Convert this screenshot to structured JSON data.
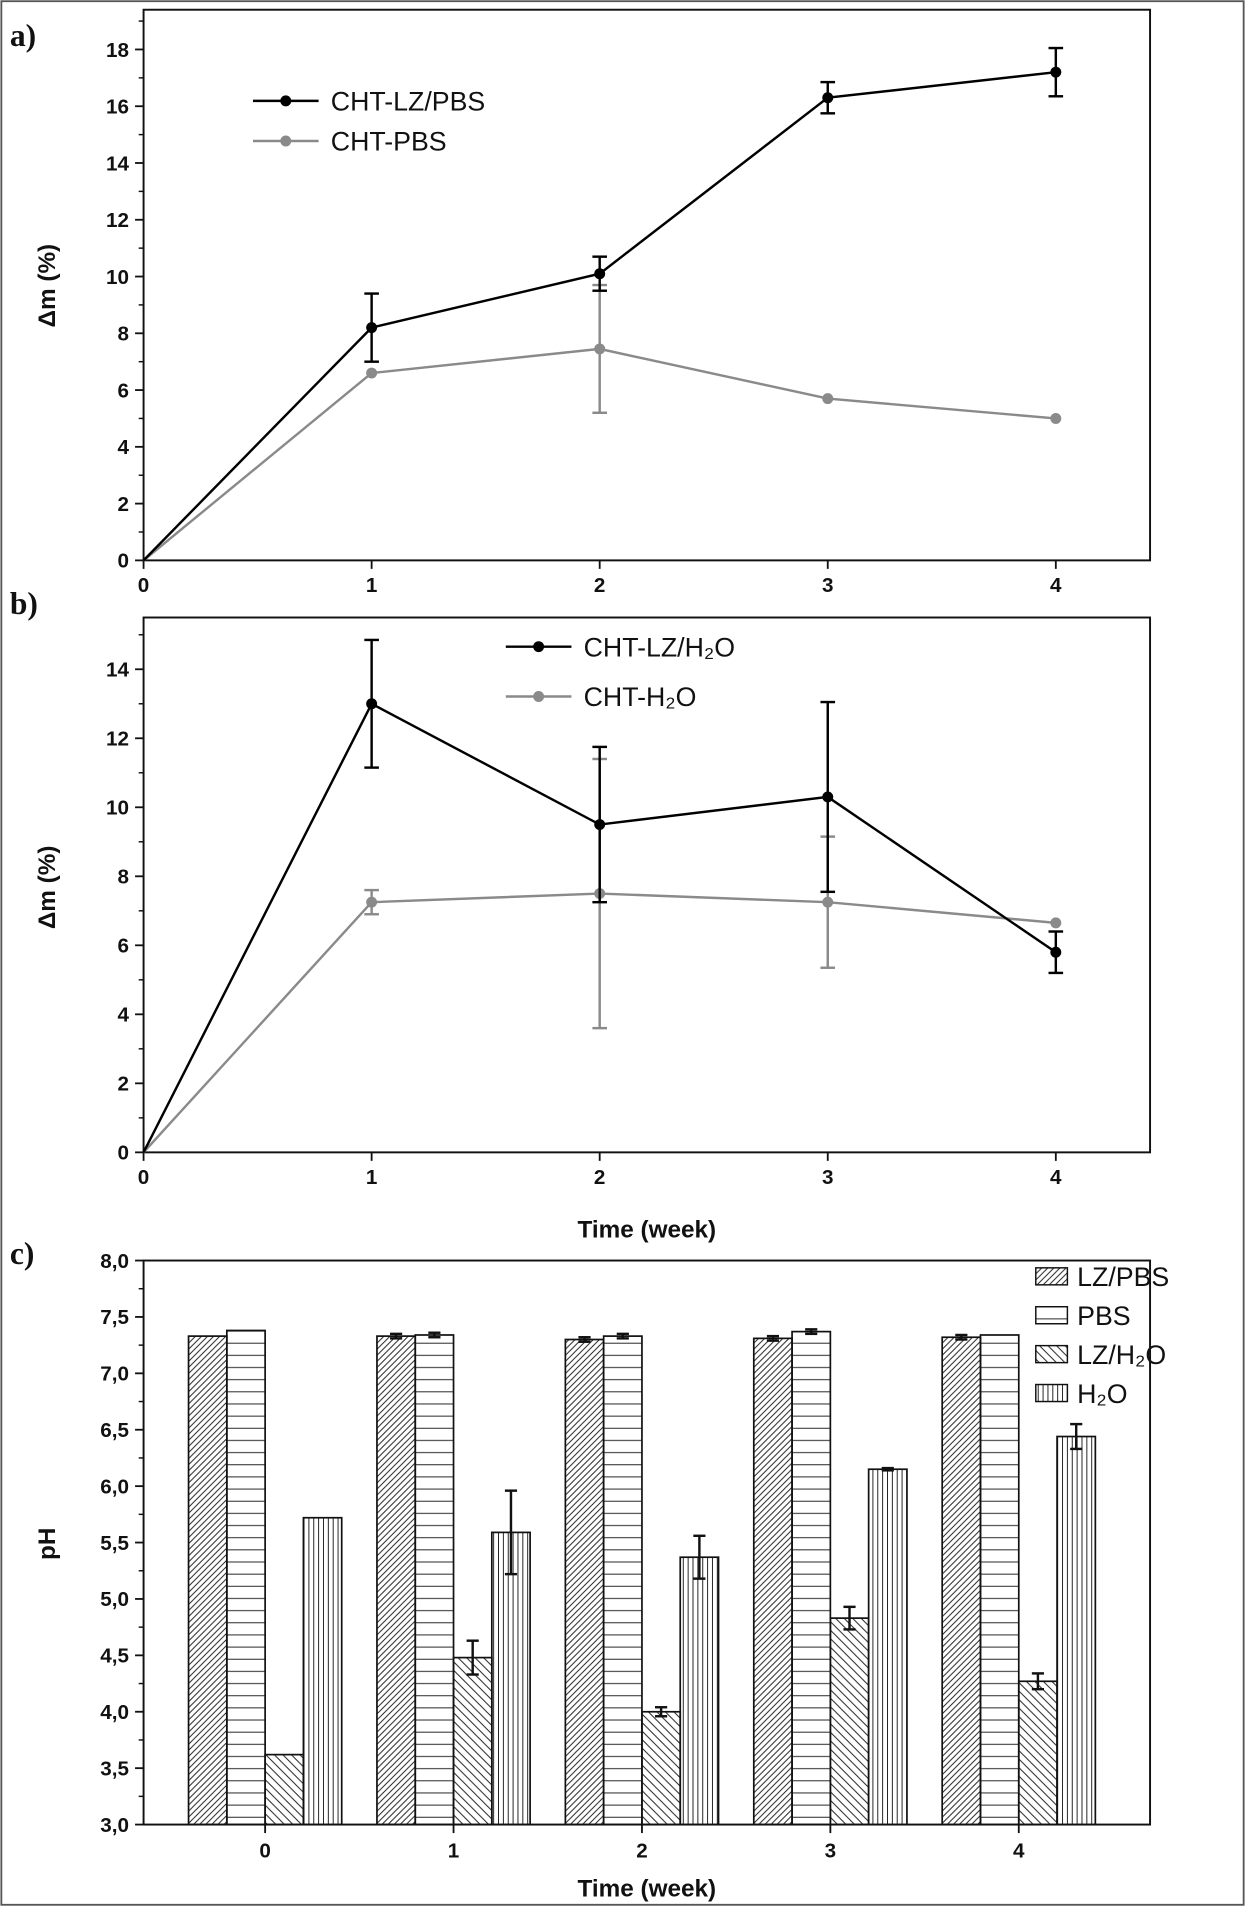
{
  "chart_data": [
    {
      "panel_label": "a)",
      "type": "line",
      "xlabel": "",
      "ylabel": "Δm (%)",
      "x": [
        0,
        1,
        2,
        3,
        4
      ],
      "xlim": [
        0,
        4.2
      ],
      "ylim": [
        0,
        19.4
      ],
      "xticks": [
        "0",
        "1",
        "2",
        "3",
        "4"
      ],
      "yticks": [
        "0",
        "2",
        "4",
        "6",
        "8",
        "10",
        "12",
        "14",
        "16",
        "18"
      ],
      "grid": false,
      "legend_position": "top-left",
      "series": [
        {
          "name": "CHT-LZ/PBS",
          "color": "#000000",
          "values": [
            0,
            8.2,
            10.1,
            16.3,
            17.2
          ],
          "errors": [
            0,
            1.2,
            0.6,
            0.55,
            0.85
          ]
        },
        {
          "name": "CHT-PBS",
          "color": "#8a8a8a",
          "values": [
            0,
            6.6,
            7.45,
            5.7,
            5.0
          ],
          "errors": [
            0,
            0,
            2.25,
            0,
            0
          ]
        }
      ]
    },
    {
      "panel_label": "b)",
      "type": "line",
      "xlabel": "Time (week)",
      "ylabel": "Δm (%)",
      "x": [
        0,
        1,
        2,
        3,
        4
      ],
      "xlim": [
        0,
        4.2
      ],
      "ylim": [
        0,
        15.5
      ],
      "xticks": [
        "0",
        "1",
        "2",
        "3",
        "4"
      ],
      "yticks": [
        "0",
        "2",
        "4",
        "6",
        "8",
        "10",
        "12",
        "14"
      ],
      "grid": false,
      "legend_position": "top-center",
      "series": [
        {
          "name": "CHT-LZ/H₂O",
          "color": "#000000",
          "values": [
            0,
            13.0,
            9.5,
            10.3,
            5.8
          ],
          "errors": [
            0,
            1.85,
            2.25,
            2.75,
            0.6
          ]
        },
        {
          "name": "CHT-H₂O",
          "color": "#8a8a8a",
          "values": [
            0,
            7.25,
            7.5,
            7.25,
            6.65
          ],
          "errors": [
            0,
            0.35,
            3.9,
            1.9,
            0
          ]
        }
      ]
    },
    {
      "panel_label": "c)",
      "type": "bar",
      "xlabel": "Time (week)",
      "ylabel": "pH",
      "categories": [
        "0",
        "1",
        "2",
        "3",
        "4"
      ],
      "ylim": [
        3.0,
        8.0
      ],
      "yticks": [
        "3,0",
        "3,5",
        "4,0",
        "4,5",
        "5,0",
        "5,5",
        "6,0",
        "6,5",
        "7,0",
        "7,5",
        "8,0"
      ],
      "grid": false,
      "legend_position": "top-right",
      "series": [
        {
          "name": "LZ/PBS",
          "pattern": "diagonal-up",
          "values": [
            7.33,
            7.33,
            7.3,
            7.31,
            7.32
          ],
          "errors": [
            0,
            0.02,
            0.02,
            0.02,
            0.02
          ]
        },
        {
          "name": "PBS",
          "pattern": "horizontal",
          "values": [
            7.38,
            7.34,
            7.33,
            7.37,
            7.34
          ],
          "errors": [
            0,
            0.02,
            0.02,
            0.02,
            0
          ]
        },
        {
          "name": "LZ/H₂O",
          "pattern": "diagonal-down",
          "values": [
            3.62,
            4.48,
            4.0,
            4.83,
            4.27
          ],
          "errors": [
            0,
            0.15,
            0.04,
            0.1,
            0.07
          ]
        },
        {
          "name": "H₂O",
          "pattern": "vertical",
          "values": [
            5.72,
            5.59,
            5.37,
            6.15,
            6.44
          ],
          "errors": [
            0,
            0.37,
            0.19,
            0.01,
            0.11
          ]
        }
      ]
    }
  ]
}
